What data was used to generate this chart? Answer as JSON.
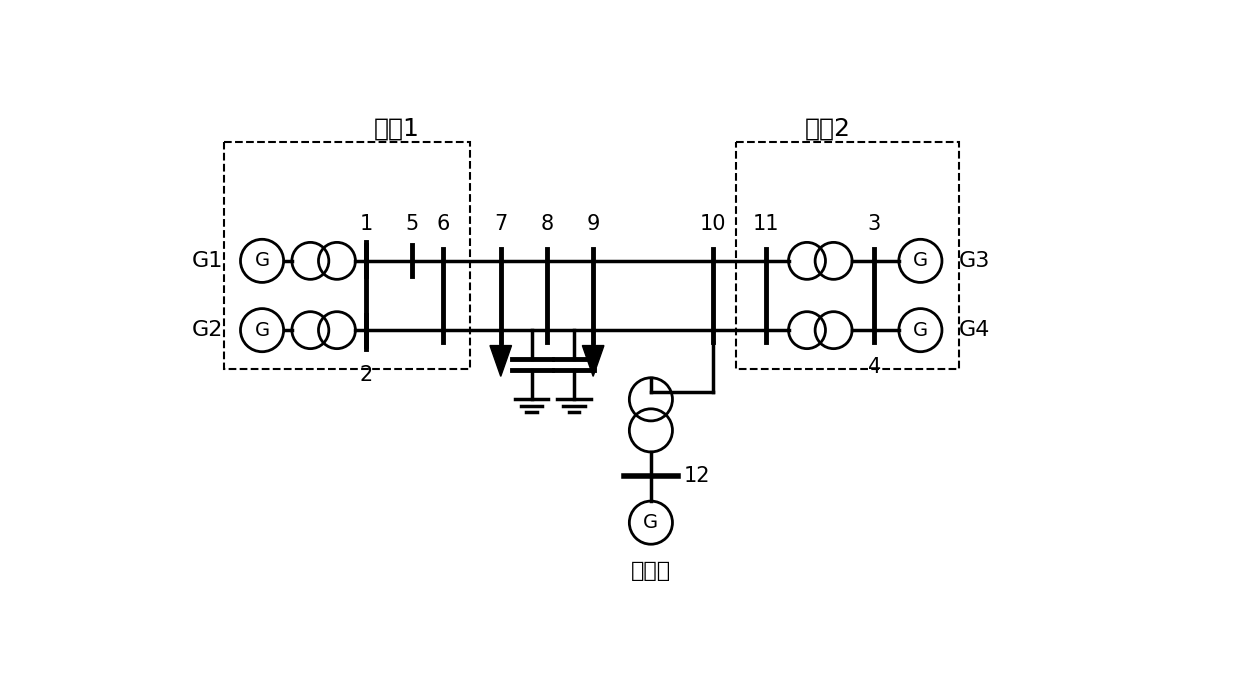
{
  "bg_color": "#ffffff",
  "line_color": "#000000",
  "text_color": "#000000",
  "figsize": [
    12.4,
    6.98
  ],
  "dpi": 100,
  "region1_label": "区块1",
  "region2_label": "区块2",
  "wind_label": "风电场",
  "g1_label": "G1",
  "g2_label": "G2",
  "g3_label": "G3",
  "g4_label": "G4"
}
